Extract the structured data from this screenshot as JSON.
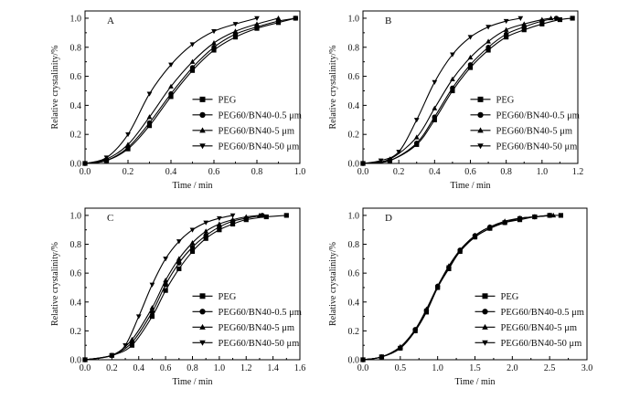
{
  "chart_data": [
    {
      "type": "line",
      "panel_label": "A",
      "xlabel": "Time / min",
      "ylabel": "Relative crystalinity/%",
      "xlim": [
        0,
        1.0
      ],
      "ylim": [
        0,
        1.05
      ],
      "xticks": [
        "0.0",
        "0.2",
        "0.4",
        "0.6",
        "0.8",
        "1.0"
      ],
      "yticks": [
        "0.0",
        "0.2",
        "0.4",
        "0.6",
        "0.8",
        "1.0"
      ],
      "legend_position": "lower-right",
      "series": [
        {
          "name": "PEG",
          "marker": "square",
          "x": [
            0.0,
            0.1,
            0.2,
            0.3,
            0.4,
            0.5,
            0.6,
            0.7,
            0.8,
            0.9,
            0.98
          ],
          "y": [
            0.0,
            0.02,
            0.1,
            0.26,
            0.46,
            0.64,
            0.78,
            0.87,
            0.93,
            0.97,
            1.0
          ]
        },
        {
          "name": "PEG60/BN40-0.5 μm",
          "marker": "circle",
          "x": [
            0.0,
            0.1,
            0.2,
            0.3,
            0.4,
            0.5,
            0.6,
            0.7,
            0.8,
            0.9,
            0.98
          ],
          "y": [
            0.0,
            0.02,
            0.11,
            0.28,
            0.48,
            0.66,
            0.8,
            0.89,
            0.94,
            0.98,
            1.0
          ]
        },
        {
          "name": "PEG60/BN40-5 μm",
          "marker": "triangle-up",
          "x": [
            0.0,
            0.1,
            0.2,
            0.3,
            0.4,
            0.5,
            0.6,
            0.7,
            0.8,
            0.9
          ],
          "y": [
            0.0,
            0.03,
            0.13,
            0.32,
            0.53,
            0.7,
            0.83,
            0.91,
            0.96,
            1.0
          ]
        },
        {
          "name": "PEG60/BN40-50 μm",
          "marker": "triangle-down",
          "x": [
            0.0,
            0.1,
            0.2,
            0.3,
            0.4,
            0.5,
            0.6,
            0.7,
            0.8
          ],
          "y": [
            0.0,
            0.04,
            0.2,
            0.48,
            0.68,
            0.82,
            0.91,
            0.96,
            1.0
          ]
        }
      ]
    },
    {
      "type": "line",
      "panel_label": "B",
      "xlabel": "Time / min",
      "ylabel": "Relative crystalinity/%",
      "xlim": [
        0,
        1.2
      ],
      "ylim": [
        0,
        1.05
      ],
      "xticks": [
        "0.0",
        "0.2",
        "0.4",
        "0.6",
        "0.8",
        "1.0",
        "1.2"
      ],
      "yticks": [
        "0.0",
        "0.2",
        "0.4",
        "0.6",
        "0.8",
        "1.0"
      ],
      "legend_position": "lower-right",
      "series": [
        {
          "name": "PEG",
          "marker": "square",
          "x": [
            0.0,
            0.15,
            0.3,
            0.4,
            0.5,
            0.6,
            0.7,
            0.8,
            0.9,
            1.0,
            1.1,
            1.17
          ],
          "y": [
            0.0,
            0.02,
            0.13,
            0.3,
            0.5,
            0.66,
            0.78,
            0.87,
            0.92,
            0.96,
            0.99,
            1.0
          ]
        },
        {
          "name": "PEG60/BN40-0.5 μm",
          "marker": "circle",
          "x": [
            0.0,
            0.15,
            0.3,
            0.4,
            0.5,
            0.6,
            0.7,
            0.8,
            0.9,
            1.0,
            1.08
          ],
          "y": [
            0.0,
            0.02,
            0.14,
            0.32,
            0.52,
            0.68,
            0.8,
            0.89,
            0.94,
            0.98,
            1.0
          ]
        },
        {
          "name": "PEG60/BN40-5 μm",
          "marker": "triangle-up",
          "x": [
            0.0,
            0.15,
            0.3,
            0.4,
            0.5,
            0.6,
            0.7,
            0.8,
            0.9,
            1.0,
            1.05
          ],
          "y": [
            0.0,
            0.03,
            0.18,
            0.38,
            0.58,
            0.73,
            0.84,
            0.92,
            0.96,
            0.99,
            1.0
          ]
        },
        {
          "name": "PEG60/BN40-50 μm",
          "marker": "triangle-down",
          "x": [
            0.0,
            0.1,
            0.2,
            0.3,
            0.4,
            0.5,
            0.6,
            0.7,
            0.8,
            0.88
          ],
          "y": [
            0.0,
            0.02,
            0.08,
            0.3,
            0.56,
            0.75,
            0.87,
            0.94,
            0.98,
            1.0
          ]
        }
      ]
    },
    {
      "type": "line",
      "panel_label": "C",
      "xlabel": "Time / min",
      "ylabel": "Relative crystalinity/%",
      "xlim": [
        0,
        1.6
      ],
      "ylim": [
        0,
        1.05
      ],
      "xticks": [
        "0.0",
        "0.2",
        "0.4",
        "0.6",
        "0.8",
        "1.0",
        "1.2",
        "1.4",
        "1.6"
      ],
      "yticks": [
        "0.0",
        "0.2",
        "0.4",
        "0.6",
        "0.8",
        "1.0"
      ],
      "legend_position": "lower-right",
      "series": [
        {
          "name": "PEG",
          "marker": "square",
          "x": [
            0.0,
            0.2,
            0.35,
            0.5,
            0.6,
            0.7,
            0.8,
            0.9,
            1.0,
            1.1,
            1.2,
            1.35,
            1.5
          ],
          "y": [
            0.0,
            0.03,
            0.1,
            0.3,
            0.48,
            0.63,
            0.75,
            0.84,
            0.9,
            0.94,
            0.97,
            0.99,
            1.0
          ]
        },
        {
          "name": "PEG60/BN40-0.5 μm",
          "marker": "circle",
          "x": [
            0.0,
            0.2,
            0.35,
            0.5,
            0.6,
            0.7,
            0.8,
            0.9,
            1.0,
            1.1,
            1.2,
            1.32
          ],
          "y": [
            0.0,
            0.03,
            0.12,
            0.33,
            0.52,
            0.67,
            0.78,
            0.86,
            0.92,
            0.96,
            0.98,
            1.0
          ]
        },
        {
          "name": "PEG60/BN40-5 μm",
          "marker": "triangle-up",
          "x": [
            0.0,
            0.2,
            0.35,
            0.5,
            0.6,
            0.7,
            0.8,
            0.9,
            1.0,
            1.1,
            1.2,
            1.3
          ],
          "y": [
            0.0,
            0.03,
            0.14,
            0.36,
            0.55,
            0.7,
            0.81,
            0.89,
            0.94,
            0.97,
            0.99,
            1.0
          ]
        },
        {
          "name": "PEG60/BN40-50 μm",
          "marker": "triangle-down",
          "x": [
            0.0,
            0.2,
            0.3,
            0.4,
            0.5,
            0.6,
            0.7,
            0.8,
            0.9,
            1.0,
            1.1
          ],
          "y": [
            0.0,
            0.03,
            0.1,
            0.3,
            0.52,
            0.7,
            0.82,
            0.9,
            0.95,
            0.98,
            1.0
          ]
        }
      ]
    },
    {
      "type": "line",
      "panel_label": "D",
      "xlabel": "Time / min",
      "ylabel": "Relative crystalinity/%",
      "xlim": [
        0,
        3.0
      ],
      "ylim": [
        0,
        1.05
      ],
      "xticks": [
        "0.0",
        "0.5",
        "1.0",
        "1.5",
        "2.0",
        "2.5",
        "3.0"
      ],
      "yticks": [
        "0.0",
        "0.2",
        "0.4",
        "0.6",
        "0.8",
        "1.0"
      ],
      "legend_position": "lower-right",
      "series": [
        {
          "name": "PEG",
          "marker": "square",
          "x": [
            0.0,
            0.25,
            0.5,
            0.7,
            0.85,
            1.0,
            1.15,
            1.3,
            1.5,
            1.7,
            1.9,
            2.1,
            2.3,
            2.5,
            2.65
          ],
          "y": [
            0.0,
            0.02,
            0.08,
            0.2,
            0.33,
            0.5,
            0.63,
            0.75,
            0.85,
            0.91,
            0.95,
            0.97,
            0.99,
            1.0,
            1.0
          ]
        },
        {
          "name": "PEG60/BN40-0.5 μm",
          "marker": "circle",
          "x": [
            0.0,
            0.25,
            0.5,
            0.7,
            0.85,
            1.0,
            1.15,
            1.3,
            1.5,
            1.7,
            1.9,
            2.1,
            2.3,
            2.5
          ],
          "y": [
            0.0,
            0.02,
            0.08,
            0.21,
            0.34,
            0.51,
            0.64,
            0.76,
            0.86,
            0.92,
            0.95,
            0.98,
            0.99,
            1.0
          ]
        },
        {
          "name": "PEG60/BN40-5 μm",
          "marker": "triangle-up",
          "x": [
            0.0,
            0.25,
            0.5,
            0.7,
            0.85,
            1.0,
            1.15,
            1.3,
            1.5,
            1.7,
            1.9,
            2.1,
            2.3,
            2.55
          ],
          "y": [
            0.0,
            0.02,
            0.09,
            0.21,
            0.35,
            0.51,
            0.65,
            0.76,
            0.86,
            0.92,
            0.96,
            0.98,
            0.99,
            1.0
          ]
        },
        {
          "name": "PEG60/BN40-50 μm",
          "marker": "triangle-down",
          "x": [
            0.0,
            0.25,
            0.5,
            0.7,
            0.85,
            1.0,
            1.15,
            1.3,
            1.5,
            1.7,
            1.9,
            2.1,
            2.3,
            2.5
          ],
          "y": [
            0.0,
            0.02,
            0.08,
            0.2,
            0.34,
            0.5,
            0.64,
            0.75,
            0.85,
            0.91,
            0.95,
            0.98,
            0.99,
            1.0
          ]
        }
      ]
    }
  ]
}
